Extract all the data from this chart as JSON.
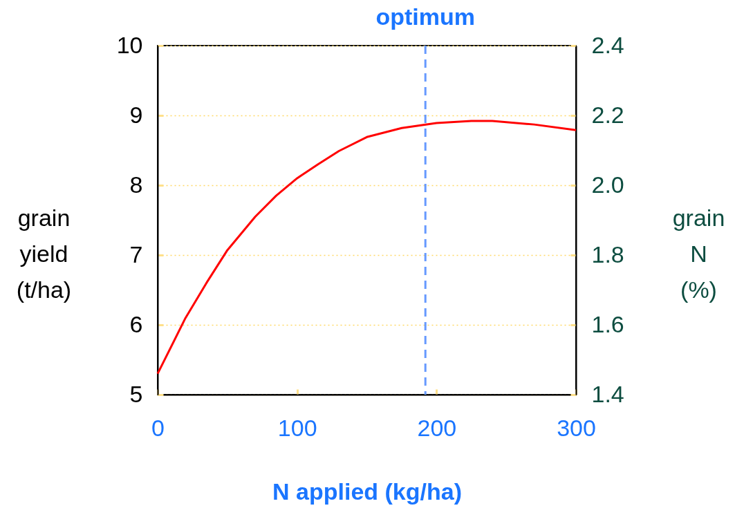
{
  "chart_data": {
    "type": "line",
    "xlabel": "N applied (kg/ha)",
    "ylabel": "grain\nyield\n(t/ha)",
    "y2label": "grain\nN\n(%)",
    "x": [
      0,
      20,
      35,
      50,
      70,
      85,
      100,
      115,
      130,
      150,
      175,
      200,
      225,
      240,
      270,
      300
    ],
    "series": [
      {
        "color": "#ff0000",
        "values": [
          5.3,
          6.1,
          6.6,
          7.07,
          7.55,
          7.85,
          8.1,
          8.3,
          8.49,
          8.69,
          8.82,
          8.89,
          8.92,
          8.92,
          8.87,
          8.79
        ]
      }
    ],
    "xlim": [
      0,
      300
    ],
    "xticks": [
      0,
      100,
      200,
      300
    ],
    "ylim": [
      5,
      10
    ],
    "yticks": [
      5,
      6,
      7,
      8,
      9,
      10
    ],
    "y2lim": [
      1.4,
      2.4
    ],
    "y2ticks": [
      1.4,
      1.6,
      1.8,
      {
        "value": 2.0,
        "label": "2.0"
      },
      2.2,
      2.4
    ],
    "ref_lines": [
      {
        "axis": "x",
        "value": 192,
        "label": "optimum",
        "color": "#6699ff",
        "line_style": "dashed"
      }
    ],
    "grid": "y",
    "marker": "none",
    "line_style": "solid"
  }
}
